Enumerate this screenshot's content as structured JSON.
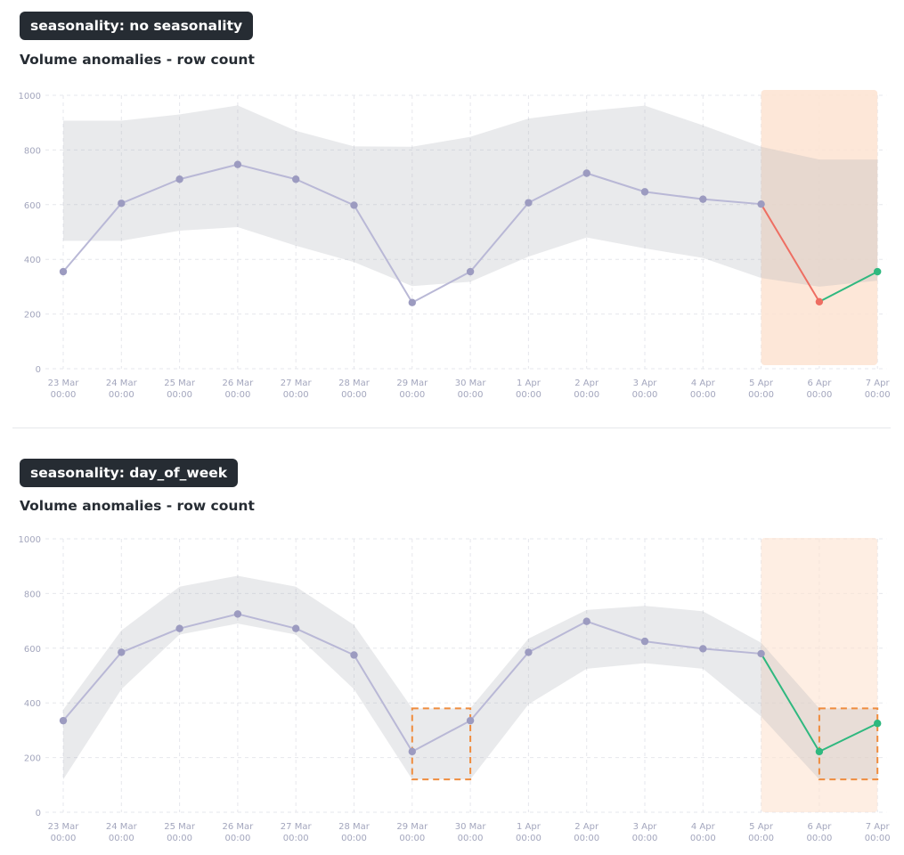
{
  "colors": {
    "line": "#b9b8d6",
    "point": "#9c9bc0",
    "band": "#e8e9eb",
    "highlight": "#fde3d1",
    "anomaly": "#ee6e62",
    "normal": "#2fb87f",
    "box": "#ef8c3e",
    "grid": "#e6e7ec"
  },
  "panels": [
    {
      "badge": "seasonality: no seasonality",
      "title": "Volume anomalies - row count"
    },
    {
      "badge": "seasonality: day_of_week",
      "title": "Volume anomalies - row count"
    }
  ],
  "chart_data": [
    {
      "type": "line",
      "title": "Volume anomalies - row count",
      "ylim": [
        0,
        1000
      ],
      "yticks": [
        "0",
        "200",
        "400",
        "600",
        "800",
        "1000"
      ],
      "categories": [
        "23 Mar",
        "24 Mar",
        "25 Mar",
        "26 Mar",
        "27 Mar",
        "28 Mar",
        "29 Mar",
        "30 Mar",
        "1 Apr",
        "2 Apr",
        "3 Apr",
        "4 Apr",
        "5 Apr",
        "6 Apr",
        "7 Apr"
      ],
      "time_label": "00:00",
      "grid": true,
      "series": [
        {
          "values": [
            355,
            605,
            693,
            747,
            693,
            598,
            242,
            355,
            607,
            715,
            647,
            620,
            602,
            245,
            355
          ]
        }
      ],
      "band_upper": [
        907,
        907,
        930,
        963,
        870,
        813,
        812,
        848,
        915,
        942,
        962,
        890,
        812,
        765,
        765
      ],
      "band_lower": [
        468,
        468,
        505,
        518,
        450,
        390,
        302,
        318,
        410,
        480,
        440,
        405,
        332,
        300,
        322
      ],
      "highlight_start": 12,
      "point_status": [
        "normal",
        "normal",
        "normal",
        "normal",
        "normal",
        "normal",
        "normal",
        "normal",
        "normal",
        "normal",
        "normal",
        "normal",
        "normal",
        "anomaly",
        "ok"
      ],
      "boxes": []
    },
    {
      "type": "line",
      "title": "Volume anomalies - row count",
      "ylim": [
        0,
        1000
      ],
      "yticks": [
        "0",
        "200",
        "400",
        "600",
        "800",
        "1000"
      ],
      "categories": [
        "23 Mar",
        "24 Mar",
        "25 Mar",
        "26 Mar",
        "27 Mar",
        "28 Mar",
        "29 Mar",
        "30 Mar",
        "1 Apr",
        "2 Apr",
        "3 Apr",
        "4 Apr",
        "5 Apr",
        "6 Apr",
        "7 Apr"
      ],
      "time_label": "00:00",
      "grid": true,
      "series": [
        {
          "values": [
            335,
            585,
            672,
            725,
            672,
            575,
            222,
            335,
            585,
            698,
            625,
            598,
            580,
            222,
            325
          ]
        }
      ],
      "band_upper": [
        375,
        665,
        825,
        865,
        825,
        685,
        380,
        380,
        635,
        740,
        755,
        735,
        620,
        380,
        380
      ],
      "band_lower": [
        120,
        450,
        650,
        690,
        650,
        450,
        120,
        120,
        395,
        525,
        545,
        525,
        350,
        120,
        120
      ],
      "highlight_start": 12,
      "point_status": [
        "normal",
        "normal",
        "normal",
        "normal",
        "normal",
        "normal",
        "normal",
        "normal",
        "normal",
        "normal",
        "normal",
        "normal",
        "normal",
        "ok",
        "ok"
      ],
      "boxes": [
        {
          "from": 6,
          "to": 7,
          "low": 120,
          "high": 380
        },
        {
          "from": 13,
          "to": 14,
          "low": 120,
          "high": 380
        }
      ]
    }
  ]
}
